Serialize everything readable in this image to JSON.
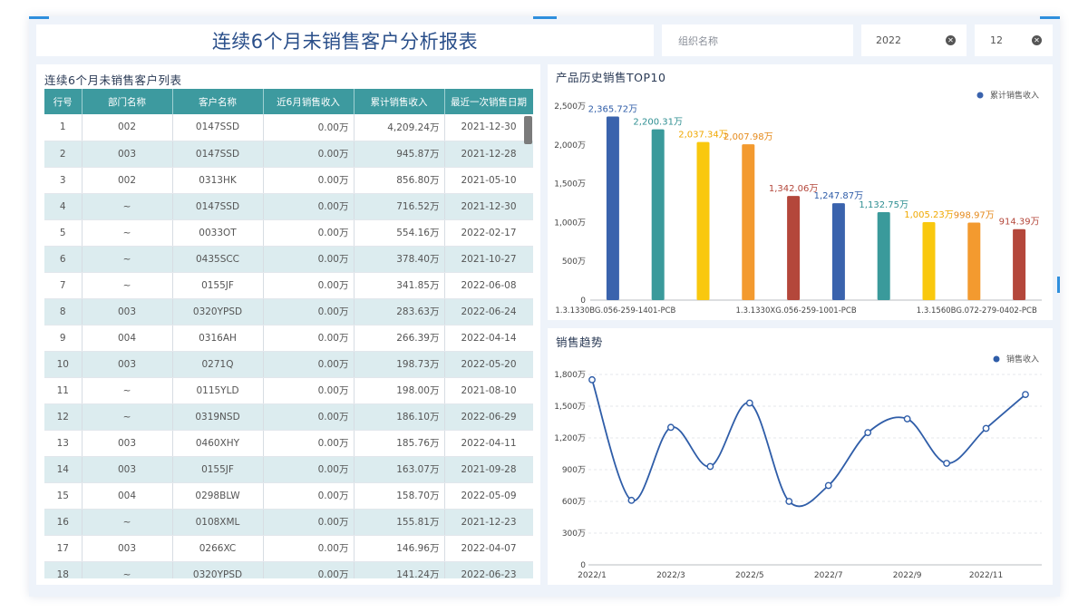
{
  "header": {
    "title": "连续6个月未销售客户分析报表"
  },
  "filters": {
    "org": {
      "placeholder": "组织名称"
    },
    "year": {
      "value": "2022"
    },
    "month": {
      "value": "12"
    }
  },
  "table_section": {
    "title": "连续6个月未销售客户列表",
    "columns": [
      "行号",
      "部门名称",
      "客户名称",
      "近6月销售收入",
      "累计销售收入",
      "最近一次销售日期"
    ],
    "rows": [
      [
        "1",
        "002",
        "0147SSD",
        "0.00万",
        "4,209.24万",
        "2021-12-30"
      ],
      [
        "2",
        "003",
        "0147SSD",
        "0.00万",
        "945.87万",
        "2021-12-28"
      ],
      [
        "3",
        "002",
        "0313HK",
        "0.00万",
        "856.80万",
        "2021-05-10"
      ],
      [
        "4",
        "~",
        "0147SSD",
        "0.00万",
        "716.52万",
        "2021-12-30"
      ],
      [
        "5",
        "~",
        "0033OT",
        "0.00万",
        "554.16万",
        "2022-02-17"
      ],
      [
        "6",
        "~",
        "0435SCC",
        "0.00万",
        "378.40万",
        "2021-10-27"
      ],
      [
        "7",
        "~",
        "0155JF",
        "0.00万",
        "341.85万",
        "2022-06-08"
      ],
      [
        "8",
        "003",
        "0320YPSD",
        "0.00万",
        "283.63万",
        "2022-06-24"
      ],
      [
        "9",
        "004",
        "0316AH",
        "0.00万",
        "266.39万",
        "2022-04-14"
      ],
      [
        "10",
        "003",
        "0271Q",
        "0.00万",
        "198.73万",
        "2022-05-20"
      ],
      [
        "11",
        "~",
        "0115YLD",
        "0.00万",
        "198.00万",
        "2021-08-10"
      ],
      [
        "12",
        "~",
        "0319NSD",
        "0.00万",
        "186.10万",
        "2022-06-29"
      ],
      [
        "13",
        "003",
        "0460XHY",
        "0.00万",
        "185.76万",
        "2022-04-11"
      ],
      [
        "14",
        "003",
        "0155JF",
        "0.00万",
        "163.07万",
        "2021-09-28"
      ],
      [
        "15",
        "004",
        "0298BLW",
        "0.00万",
        "158.70万",
        "2022-05-09"
      ],
      [
        "16",
        "~",
        "0108XML",
        "0.00万",
        "155.81万",
        "2021-12-23"
      ],
      [
        "17",
        "003",
        "0266XC",
        "0.00万",
        "146.96万",
        "2022-04-07"
      ],
      [
        "18",
        "~",
        "0320YPSD",
        "0.00万",
        "141.24万",
        "2022-06-23"
      ]
    ]
  },
  "chart_data": [
    {
      "type": "bar",
      "title": "产品历史销售TOP10",
      "legend": "累计销售收入",
      "legend_position": "top-right",
      "categories": [
        "1.3.1330BG.056-259-1401-PCB",
        "",
        "",
        "",
        "1.3.1330XG.056-259-1001-PCB",
        "",
        "",
        "",
        "1.3.1560BG.072-279-0402-PCB",
        ""
      ],
      "values": [
        2365.72,
        2200.31,
        2037.34,
        2007.98,
        1342.06,
        1247.87,
        1132.75,
        1005.23,
        998.97,
        914.39
      ],
      "labels": [
        "2,365.72万",
        "2,200.31万",
        "2,037.34万",
        "2,007.98万",
        "1,342.06万",
        "1,247.87万",
        "1,132.75万",
        "1,005.23万",
        "998.97万",
        "914.39万"
      ],
      "colors": [
        "#3a63ad",
        "#3a9a9b",
        "#f9c80e",
        "#f39a2f",
        "#b4473b",
        "#3a63ad",
        "#3a9a9b",
        "#f9c80e",
        "#f39a2f",
        "#b4473b"
      ],
      "label_colors": [
        "#2f5da8",
        "#2f8f92",
        "#f0a800",
        "#e58a1c",
        "#b4473b",
        "#2f5da8",
        "#2f8f92",
        "#f0a800",
        "#e58a1c",
        "#b4473b"
      ],
      "yticks": [
        "0",
        "500万",
        "1,000万",
        "1,500万",
        "2,000万",
        "2,500万"
      ],
      "ylim": [
        0,
        2500
      ],
      "grid": false
    },
    {
      "type": "line",
      "title": "销售趋势",
      "legend": "销售收入",
      "legend_position": "top-right",
      "x": [
        "2022/1",
        "2022/2",
        "2022/3",
        "2022/4",
        "2022/5",
        "2022/6",
        "2022/7",
        "2022/8",
        "2022/9",
        "2022/10",
        "2022/11",
        "2022/12"
      ],
      "xtick_labels": [
        "2022/1",
        "2022/3",
        "2022/5",
        "2022/7",
        "2022/9",
        "2022/11"
      ],
      "values": [
        1750,
        610,
        1300,
        930,
        1530,
        600,
        750,
        1250,
        1380,
        960,
        1290,
        1610
      ],
      "yticks": [
        "0",
        "300万",
        "600万",
        "900万",
        "1,200万",
        "1,500万",
        "1,800万"
      ],
      "ylim": [
        0,
        1800
      ],
      "color": "#2f5da8",
      "grid": true
    }
  ]
}
